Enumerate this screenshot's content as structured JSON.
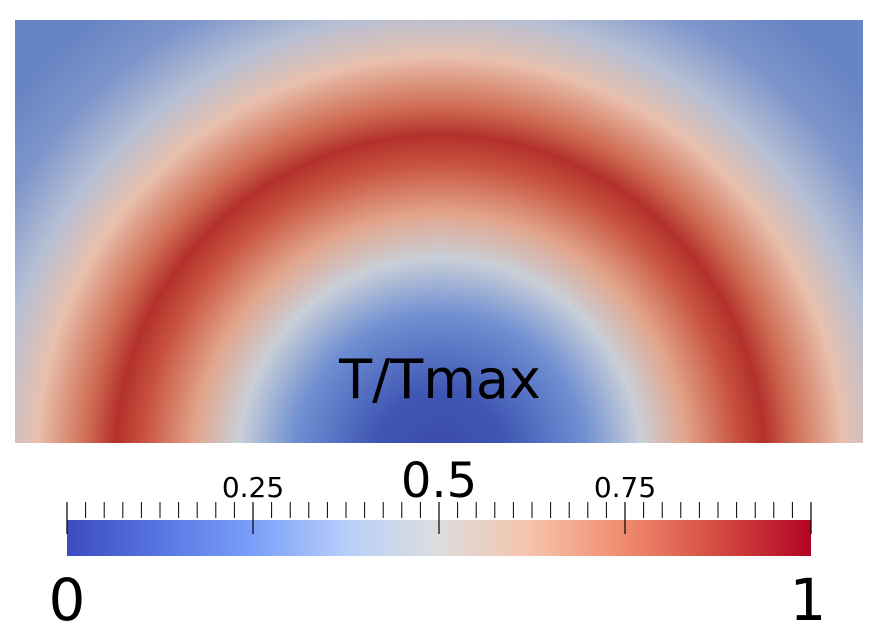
{
  "field": {
    "variable": "T/Tmax",
    "colormap": "cool-to-warm"
  },
  "colorbar": {
    "range": [
      0,
      1
    ],
    "colors": {
      "low": "#3b4cc0",
      "mid": "#dddddd",
      "high": "#b40426"
    },
    "labels": {
      "min": "0",
      "q1": "0.25",
      "mid": "0.5",
      "q3": "0.75",
      "max": "1"
    }
  }
}
